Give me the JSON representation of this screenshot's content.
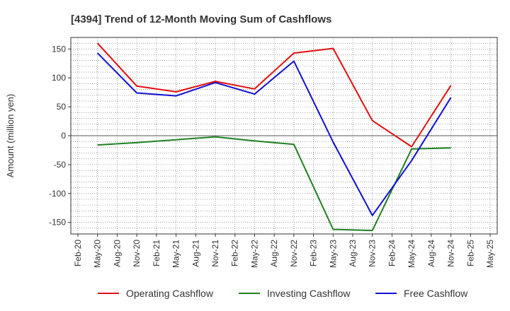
{
  "chart_data": {
    "type": "line",
    "title": "[4394]  Trend of 12-Month Moving Sum of Cashflows",
    "xlabel": "",
    "ylabel": "Amount (million yen)",
    "ylim": [
      -170,
      170
    ],
    "yticks": [
      150,
      100,
      50,
      0,
      -50,
      -100,
      -150
    ],
    "categories": [
      "Feb-20",
      "May-20",
      "Aug-20",
      "Nov-20",
      "Feb-21",
      "May-21",
      "Aug-21",
      "Nov-21",
      "Feb-22",
      "May-22",
      "Aug-22",
      "Nov-22",
      "Feb-23",
      "May-23",
      "Aug-23",
      "Nov-23",
      "Feb-24",
      "May-24",
      "Aug-24",
      "Nov-24",
      "Feb-25",
      "May-25"
    ],
    "grid": true,
    "legend_position": "bottom",
    "series": [
      {
        "name": "Operating Cashflow",
        "color": "#e01010",
        "values": [
          null,
          160,
          null,
          86,
          null,
          76,
          null,
          94,
          null,
          81,
          null,
          143,
          null,
          151,
          null,
          26,
          null,
          -19,
          null,
          87,
          null,
          null
        ]
      },
      {
        "name": "Investing Cashflow",
        "color": "#208020",
        "values": [
          null,
          -16,
          null,
          -12,
          null,
          -7,
          null,
          -2,
          null,
          -9,
          null,
          -15,
          null,
          -162,
          null,
          -164,
          null,
          -23,
          null,
          -21,
          null,
          null
        ]
      },
      {
        "name": "Free Cashflow",
        "color": "#1010d0",
        "values": [
          null,
          143,
          null,
          74,
          null,
          69,
          null,
          92,
          null,
          72,
          null,
          129,
          null,
          -11,
          null,
          -138,
          null,
          -43,
          null,
          66,
          null,
          null
        ]
      }
    ]
  }
}
